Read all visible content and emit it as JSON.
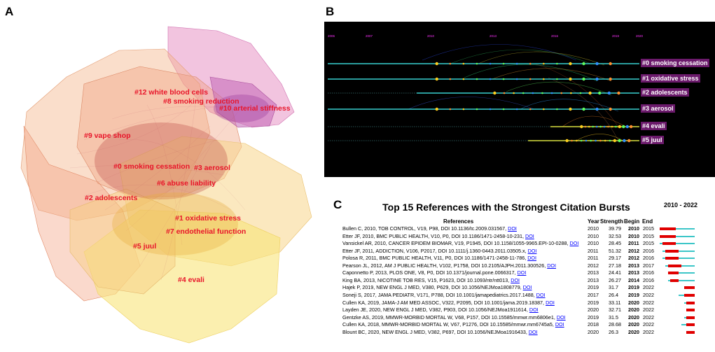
{
  "panels": {
    "a": "A",
    "b": "B",
    "c": "C"
  },
  "colors": {
    "cluster_label": "#e8152a",
    "burst": "#e00000",
    "baseline": "#3cc6c8",
    "timeline_bg": "#000000",
    "timeline_label_bg": "#6b1a6b"
  },
  "chart_data": [
    {
      "type": "network",
      "title": "",
      "clusters": [
        {
          "label": "#12 white blood cells"
        },
        {
          "label": "#8 smoking reduction"
        },
        {
          "label": "#10 arterial stiffness"
        },
        {
          "label": "#9 vape shop"
        },
        {
          "label": "#0 smoking cessation"
        },
        {
          "label": "#3 aerosol"
        },
        {
          "label": "#6 abuse liability"
        },
        {
          "label": "#2 adolescents"
        },
        {
          "label": "#1 oxidative stress"
        },
        {
          "label": "#7 endothelial function"
        },
        {
          "label": "#5 juul"
        },
        {
          "label": "#4 evali"
        }
      ]
    },
    {
      "type": "timeline",
      "years": [
        "2006",
        "2007",
        "2010",
        "2013",
        "2016",
        "2019",
        "2020"
      ],
      "clusters": [
        {
          "label": "#0 smoking cessation",
          "start": 2006,
          "end": 2020
        },
        {
          "label": "#1 oxidative stress",
          "start": 2006,
          "end": 2020
        },
        {
          "label": "#2 adolescents",
          "start": 2010,
          "end": 2020
        },
        {
          "label": "#3 aerosol",
          "start": 2006,
          "end": 2020
        },
        {
          "label": "#4 evali",
          "start": 2016,
          "end": 2020
        },
        {
          "label": "#5 juul",
          "start": 2015,
          "end": 2020
        }
      ]
    },
    {
      "type": "table",
      "title": "Top 15 References with the Strongest Citation Bursts",
      "columns": {
        "references": "References",
        "year": "Year",
        "strength": "Strength",
        "begin": "Begin",
        "end": "End",
        "range": "2010 - 2022"
      },
      "range": [
        2010,
        2022
      ],
      "rows": [
        {
          "ref": "Bullen C, 2010, TOB CONTROL, V19, P98, DOI 10.1136/tc.2009.031567,",
          "doi": "DOI",
          "year": "2010",
          "strength": "39.79",
          "begin": "2010",
          "end": "2015"
        },
        {
          "ref": "Etter JF, 2010, BMC PUBLIC HEALTH, V10, P0, DOI 10.1186/1471-2458-10-231,",
          "doi": "DOI",
          "year": "2010",
          "strength": "32.53",
          "begin": "2010",
          "end": "2015"
        },
        {
          "ref": "Vansickel AR, 2010, CANCER EPIDEM BIOMAR, V19, P1945, DOI 10.1158/1055-9965.EPI-10-0288,",
          "doi": "DOI",
          "year": "2010",
          "strength": "28.45",
          "begin": "2011",
          "end": "2015"
        },
        {
          "ref": "Etter JF, 2011, ADDICTION, V106, P2017, DOI 10.1111/j.1360-0443.2011.03505.x,",
          "doi": "DOI",
          "year": "2011",
          "strength": "51.32",
          "begin": "2012",
          "end": "2016"
        },
        {
          "ref": "Polosa R, 2011, BMC PUBLIC HEALTH, V11, P0, DOI 10.1186/1471-2458-11-786,",
          "doi": "DOI",
          "year": "2011",
          "strength": "29.17",
          "begin": "2012",
          "end": "2016"
        },
        {
          "ref": "Pearson JL, 2012, AM J PUBLIC HEALTH, V102, P1758, DOI 10.2105/AJPH.2011.300526,",
          "doi": "DOI",
          "year": "2012",
          "strength": "27.18",
          "begin": "2013",
          "end": "2017"
        },
        {
          "ref": "Caponnetto P, 2013, PLOS ONE, V8, P0, DOI 10.1371/journal.pone.0066317,",
          "doi": "DOI",
          "year": "2013",
          "strength": "24.41",
          "begin": "2013",
          "end": "2016"
        },
        {
          "ref": "King BA, 2013, NICOTINE TOB RES, V15, P1623, DOI 10.1093/ntr/ntt013,",
          "doi": "DOI",
          "year": "2013",
          "strength": "26.27",
          "begin": "2014",
          "end": "2016"
        },
        {
          "ref": "Hajek P, 2019, NEW ENGL J MED, V380, P629, DOI 10.1056/NEJMoa1808779,",
          "doi": "DOI",
          "year": "2019",
          "strength": "31.7",
          "begin": "2019",
          "end": "2022"
        },
        {
          "ref": "Soneji S, 2017, JAMA PEDIATR, V171, P788, DOI 10.1001/jamapediatrics.2017.1488,",
          "doi": "DOI",
          "year": "2017",
          "strength": "26.4",
          "begin": "2019",
          "end": "2022"
        },
        {
          "ref": "Cullen KA, 2019, JAMA-J AM MED ASSOC, V322, P2095, DOI 10.1001/jama.2019.18387,",
          "doi": "DOI",
          "year": "2019",
          "strength": "33.11",
          "begin": "2020",
          "end": "2022"
        },
        {
          "ref": "Layden JE, 2020, NEW ENGL J MED, V382, P903, DOI 10.1056/NEJMoa1911614,",
          "doi": "DOI",
          "year": "2020",
          "strength": "32.71",
          "begin": "2020",
          "end": "2022"
        },
        {
          "ref": "Gentzke AS, 2019, MMWR-MORBID MORTAL W, V68, P157, DOI 10.15585/mmwr.mm6806e1,",
          "doi": "DOI",
          "year": "2019",
          "strength": "31.5",
          "begin": "2020",
          "end": "2022"
        },
        {
          "ref": "Cullen KA, 2018, MMWR-MORBID MORTAL W, V67, P1276, DOI 10.15585/mmwr.mm6745a5,",
          "doi": "DOI",
          "year": "2018",
          "strength": "28.68",
          "begin": "2020",
          "end": "2022"
        },
        {
          "ref": "Blount BC, 2020, NEW ENGL J MED, V382, P697, DOI 10.1056/NEJMoa1916433,",
          "doi": "DOI",
          "year": "2020",
          "strength": "26.3",
          "begin": "2020",
          "end": "2022"
        }
      ]
    }
  ]
}
